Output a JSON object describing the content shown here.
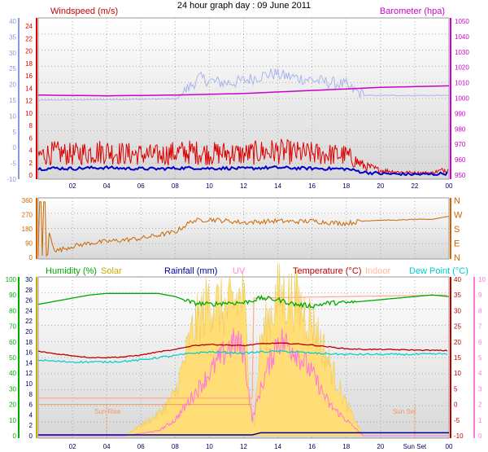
{
  "title": "24 hour graph day : 09 June 2011",
  "x_ticks": [
    "02",
    "04",
    "06",
    "08",
    "10",
    "12",
    "14",
    "16",
    "18",
    "20",
    "22",
    "00"
  ],
  "x_ticks_bottom": [
    "02",
    "04",
    "06",
    "08",
    "10",
    "12",
    "14",
    "16",
    "18",
    "20",
    "Sun Set",
    "00"
  ],
  "colors": {
    "wind": "#dd0000",
    "gust_blue": "#0000cc",
    "baro": "#cc00cc",
    "baro_axis_left": "#8899dd",
    "dir": "#cc6600",
    "humidity": "#00aa00",
    "solar": "#ccaa00",
    "rain": "#000099",
    "uv": "#ff77dd",
    "temp": "#bb0000",
    "indoor": "#ffaa88",
    "dew": "#00cccc",
    "solar_fill": "#ffdd77",
    "sun_marker": "#ee9966"
  },
  "panel1": {
    "windspeed_label": "Windspeed (m/s)",
    "barometer_label": "Barometer (hpa)",
    "left_outer_ticks": [
      "40",
      "35",
      "30",
      "25",
      "20",
      "15",
      "10",
      "5",
      "0",
      "-5",
      "-10"
    ],
    "left_inner_ticks": [
      "24",
      "22",
      "20",
      "18",
      "16",
      "14",
      "12",
      "10",
      "8",
      "6",
      "4",
      "2",
      "0"
    ],
    "right_ticks": [
      "1050",
      "1040",
      "1030",
      "1020",
      "1010",
      "1000",
      "990",
      "980",
      "970",
      "960",
      "950"
    ]
  },
  "panel2": {
    "left_ticks": [
      "360",
      "270",
      "180",
      "90",
      "0"
    ],
    "right_ticks": [
      "N",
      "W",
      "S",
      "E",
      "N"
    ]
  },
  "panel3": {
    "labels": {
      "humidity": "Humidity (%)",
      "solar": "Solar",
      "rainfall": "Rainfall (mm)",
      "uv": "UV",
      "temperature": "Temperature (°C)",
      "indoor": "Indoor",
      "dewpoint": "Dew Point (°C)"
    },
    "left_outer_ticks": [
      "100",
      "90",
      "80",
      "70",
      "60",
      "50",
      "40",
      "30",
      "20",
      "10",
      "0"
    ],
    "left_inner_ticks": [
      "30",
      "28",
      "26",
      "24",
      "22",
      "20",
      "18",
      "16",
      "14",
      "12",
      "10",
      "8",
      "6",
      "4",
      "2",
      "0"
    ],
    "right_temp_ticks": [
      "40",
      "35",
      "30",
      "25",
      "20",
      "15",
      "10",
      "5",
      "0",
      "-5",
      "-10"
    ],
    "right_uv_ticks": [
      "10",
      "9",
      "8",
      "7",
      "6",
      "5",
      "4",
      "3",
      "2",
      "1",
      "0"
    ],
    "sun_rise_label": "Sun Rise",
    "sun_set_label": "Sun Set"
  },
  "chart_data": [
    {
      "type": "line",
      "title": "24 hour graph day : 09 June 2011",
      "x_unit": "hour",
      "series": [
        {
          "name": "Windspeed (m/s)",
          "x": [
            0,
            1,
            2,
            3,
            4,
            5,
            6,
            7,
            8,
            9,
            10,
            11,
            12,
            13,
            14,
            15,
            16,
            17,
            18,
            19,
            20,
            21,
            22,
            23,
            24
          ],
          "values": [
            2.5,
            2.8,
            2.6,
            2.9,
            3.0,
            2.7,
            2.6,
            2.5,
            2.8,
            2.9,
            2.7,
            2.8,
            2.6,
            2.9,
            3.0,
            2.8,
            2.7,
            2.6,
            2.5,
            1.2,
            0.6,
            0.4,
            0.3,
            0.3,
            0.8
          ]
        },
        {
          "name": "Barometer (hpa)",
          "x": [
            0,
            4,
            8,
            12,
            16,
            20,
            24
          ],
          "values": [
            1002,
            1001.5,
            1002,
            1003,
            1005,
            1007,
            1008
          ]
        }
      ],
      "ylim_left": [
        0,
        24
      ],
      "ylim_right": [
        950,
        1050
      ]
    },
    {
      "type": "line",
      "series": [
        {
          "name": "Wind Direction",
          "x": [
            0,
            1,
            2,
            3,
            4,
            5,
            6,
            7,
            8,
            9,
            10,
            11,
            12,
            13,
            14,
            15,
            16,
            17,
            18,
            19,
            20,
            21,
            22,
            23,
            24
          ],
          "values": [
            350,
            40,
            70,
            90,
            100,
            110,
            120,
            140,
            160,
            230,
            240,
            230,
            220,
            225,
            230,
            225,
            230,
            220,
            215,
            230,
            235,
            235,
            240,
            240,
            260
          ]
        }
      ],
      "ylim": [
        0,
        360
      ]
    },
    {
      "type": "line",
      "series": [
        {
          "name": "Humidity (%)",
          "x": [
            0,
            1,
            2,
            3,
            4,
            5,
            6,
            7,
            8,
            9,
            10,
            11,
            12,
            13,
            14,
            15,
            16,
            17,
            18,
            19,
            20,
            21,
            22,
            23,
            24
          ],
          "values": [
            84,
            86,
            88,
            90,
            91,
            91,
            91,
            91,
            89,
            85,
            84,
            85,
            85,
            88,
            87,
            84,
            83,
            85,
            85,
            86,
            87,
            88,
            89,
            90,
            89
          ]
        },
        {
          "name": "Temperature (°C)",
          "x": [
            0,
            1,
            2,
            3,
            4,
            5,
            6,
            7,
            8,
            9,
            10,
            11,
            12,
            13,
            14,
            15,
            16,
            17,
            18,
            19,
            20,
            21,
            22,
            23,
            24
          ],
          "values": [
            17,
            16.2,
            15.6,
            15.0,
            15.0,
            15.2,
            15.8,
            16.8,
            17.5,
            18.8,
            19.2,
            19.0,
            18.8,
            19.4,
            19.6,
            19.4,
            19.0,
            18.4,
            17.8,
            17.6,
            17.6,
            17.5,
            17.4,
            17.3,
            17.2
          ]
        },
        {
          "name": "Dew Point (°C)",
          "x": [
            0,
            1,
            2,
            3,
            4,
            5,
            6,
            7,
            8,
            9,
            10,
            11,
            12,
            13,
            14,
            15,
            16,
            17,
            18,
            19,
            20,
            21,
            22,
            23,
            24
          ],
          "values": [
            14.2,
            13.8,
            13.6,
            13.6,
            13.6,
            13.8,
            14.2,
            15.0,
            15.6,
            16.4,
            16.8,
            16.6,
            16.4,
            16.8,
            17.0,
            16.8,
            16.4,
            16.2,
            16.0,
            16.0,
            16.0,
            16.0,
            16.0,
            16.1,
            16.2
          ]
        },
        {
          "name": "Indoor",
          "x": [
            0,
            12.5,
            12.6,
            18,
            24
          ],
          "values": [
            2,
            2,
            34,
            34.5,
            35
          ]
        },
        {
          "name": "Solar",
          "x": [
            0,
            4,
            5,
            6,
            7,
            8,
            9,
            10,
            11,
            12,
            12.3,
            12.6,
            13,
            14,
            15,
            16,
            17,
            18,
            19,
            24
          ],
          "values": [
            0,
            0,
            0,
            2,
            4,
            8,
            20,
            26,
            24,
            27,
            12,
            2,
            18,
            27,
            26,
            22,
            14,
            6,
            0,
            0
          ]
        },
        {
          "name": "UV",
          "x": [
            0,
            5,
            7,
            8,
            9,
            10,
            11,
            11.5,
            12,
            12.5,
            13,
            14,
            15,
            16,
            17,
            18,
            19,
            24
          ],
          "values": [
            0,
            0,
            0.3,
            1,
            2.5,
            4,
            5.5,
            6,
            5.5,
            1,
            3,
            6.2,
            5.5,
            4,
            2,
            1,
            0,
            0
          ]
        },
        {
          "name": "Rainfall (mm)",
          "x": [
            0,
            12.5,
            13,
            24
          ],
          "values": [
            0,
            0,
            0.4,
            0.4
          ]
        }
      ],
      "ylim_humidity": [
        0,
        100
      ],
      "ylim_temp": [
        -10,
        40
      ],
      "ylim_uv": [
        0,
        10
      ]
    }
  ]
}
